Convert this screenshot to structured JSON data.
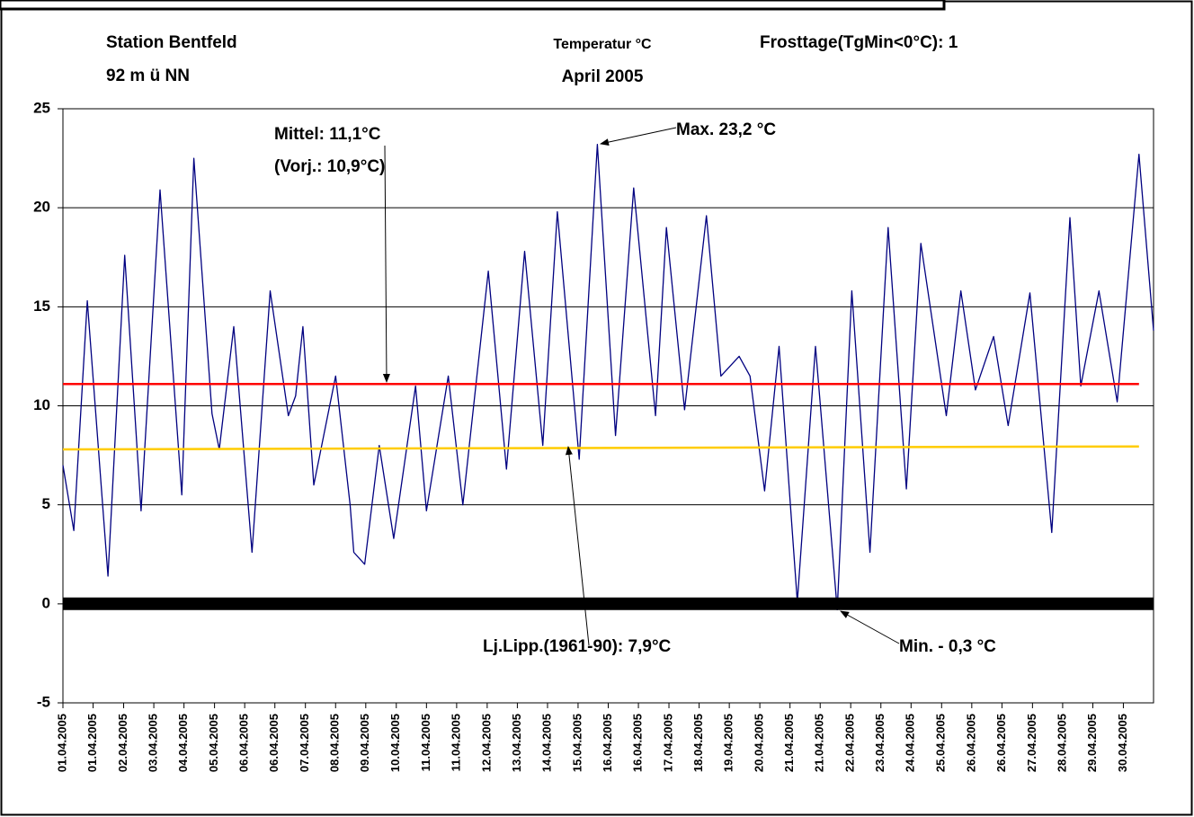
{
  "chart_data": {
    "type": "line",
    "title": "Temperatur °C",
    "subtitle": "April 2005",
    "station": [
      "Station Bentfeld",
      "92 m ü NN"
    ],
    "frost": "Frosttage(TgMin<0°C):  1",
    "annotations": [
      "Mittel:  11,1°C",
      "(Vorj.:  10,9°C)",
      "Max. 23,2 °C",
      "Lj.Lipp.(1961-90):  7,9°C",
      "Min. - 0,3 °C"
    ],
    "xlim": [
      0,
      30
    ],
    "xticks": [
      {
        "value": 0,
        "label": "01.04.2005"
      },
      {
        "value": 0.83,
        "label": "01.04.2005"
      },
      {
        "value": 1.67,
        "label": "02.04.2005"
      },
      {
        "value": 2.5,
        "label": "03.04.2005"
      },
      {
        "value": 3.33,
        "label": "04.04.2005"
      },
      {
        "value": 4.17,
        "label": "05.04.2005"
      },
      {
        "value": 5,
        "label": "06.04.2005"
      },
      {
        "value": 5.83,
        "label": "06.04.2005"
      },
      {
        "value": 6.67,
        "label": "07.04.2005"
      },
      {
        "value": 7.5,
        "label": "08.04.2005"
      },
      {
        "value": 8.33,
        "label": "09.04.2005"
      },
      {
        "value": 9.17,
        "label": "10.04.2005"
      },
      {
        "value": 10,
        "label": "11.04.2005"
      },
      {
        "value": 10.83,
        "label": "11.04.2005"
      },
      {
        "value": 11.67,
        "label": "12.04.2005"
      },
      {
        "value": 12.5,
        "label": "13.04.2005"
      },
      {
        "value": 13.33,
        "label": "14.04.2005"
      },
      {
        "value": 14.17,
        "label": "15.04.2005"
      },
      {
        "value": 15,
        "label": "16.04.2005"
      },
      {
        "value": 15.83,
        "label": "16.04.2005"
      },
      {
        "value": 16.67,
        "label": "17.04.2005"
      },
      {
        "value": 17.5,
        "label": "18.04.2005"
      },
      {
        "value": 18.33,
        "label": "19.04.2005"
      },
      {
        "value": 19.17,
        "label": "20.04.2005"
      },
      {
        "value": 20,
        "label": "21.04.2005"
      },
      {
        "value": 20.83,
        "label": "21.04.2005"
      },
      {
        "value": 21.67,
        "label": "22.04.2005"
      },
      {
        "value": 22.5,
        "label": "23.04.2005"
      },
      {
        "value": 23.33,
        "label": "24.04.2005"
      },
      {
        "value": 24.17,
        "label": "25.04.2005"
      },
      {
        "value": 25,
        "label": "26.04.2005"
      },
      {
        "value": 25.83,
        "label": "26.04.2005"
      },
      {
        "value": 26.67,
        "label": "27.04.2005"
      },
      {
        "value": 27.5,
        "label": "28.04.2005"
      },
      {
        "value": 28.33,
        "label": "29.04.2005"
      },
      {
        "value": 29.17,
        "label": "30.04.2005"
      }
    ],
    "ylim": [
      -5,
      25
    ],
    "yticks": [
      -5,
      0,
      5,
      10,
      15,
      20,
      25
    ],
    "grid": true,
    "series": [
      {
        "color": "#000080",
        "x": [
          0,
          0.3,
          0.67,
          1.24,
          1.7,
          2.15,
          2.67,
          3.27,
          3.6,
          4.1,
          4.3,
          4.7,
          5.2,
          5.7,
          6.2,
          6.4,
          6.6,
          6.9,
          7.5,
          7.9,
          8.0,
          8.3,
          8.7,
          9.1,
          9.7,
          10.0,
          10.6,
          11.0,
          11.7,
          12.2,
          12.7,
          13.2,
          13.6,
          14.2,
          14.7,
          15.2,
          15.7,
          16.3,
          16.6,
          17.1,
          17.7,
          18.1,
          18.6,
          18.9,
          19.3,
          19.7,
          20.2,
          20.7,
          21.3,
          21.7,
          22.2,
          22.7,
          23.2,
          23.6,
          24.3,
          24.7,
          25.1,
          25.6,
          26.0,
          26.6,
          27.2,
          27.7,
          28.0,
          28.5,
          29.0,
          29.6,
          30.0
        ],
        "values": [
          7,
          3.7,
          15.3,
          1.4,
          17.6,
          4.7,
          20.9,
          5.5,
          22.5,
          9.6,
          7.8,
          14,
          2.6,
          15.8,
          9.5,
          10.5,
          14,
          6,
          11.5,
          5,
          2.6,
          2,
          8,
          3.3,
          11,
          4.7,
          11.5,
          5,
          16.8,
          6.8,
          17.8,
          8,
          19.8,
          7.3,
          23.2,
          8.5,
          21,
          9.5,
          19,
          9.8,
          19.6,
          11.5,
          12.5,
          11.5,
          5.7,
          13,
          0.1,
          13,
          -0.3,
          15.8,
          2.6,
          19,
          5.8,
          18.2,
          9.5,
          15.8,
          10.8,
          13.5,
          9,
          15.7,
          3.6,
          19.5,
          11,
          15.8,
          10.2,
          22.7,
          13.8
        ]
      },
      {
        "color": "#ff0000",
        "x": [
          0,
          29.6
        ],
        "values": [
          11.1,
          11.1
        ]
      },
      {
        "color": "#ffcc00",
        "x": [
          0,
          29.6
        ],
        "values": [
          7.8,
          7.95
        ]
      },
      {
        "color": "#000000",
        "x": [
          0,
          30
        ],
        "values": [
          0,
          0
        ]
      }
    ]
  }
}
